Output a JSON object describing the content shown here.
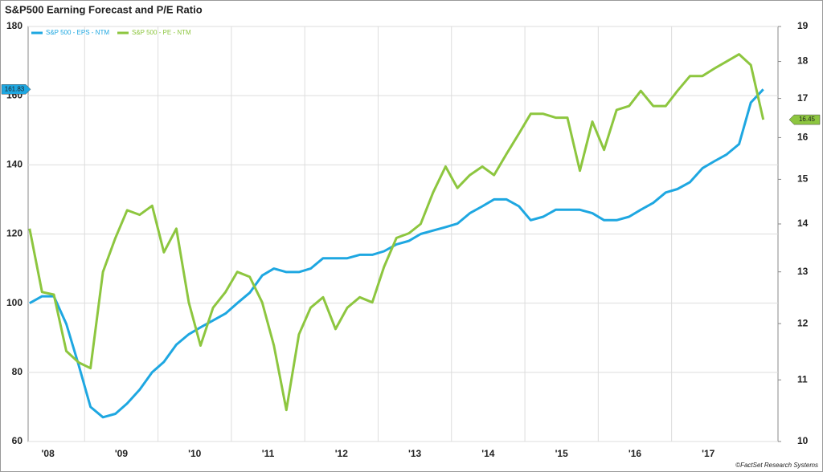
{
  "chart_data": {
    "type": "line",
    "title": "S&P500 Earning Forecast and P/E Ratio",
    "source": "©FactSet Research Systems",
    "x": [
      2008.25,
      2008.42,
      2008.58,
      2008.75,
      2008.92,
      2009.08,
      2009.25,
      2009.42,
      2009.58,
      2009.75,
      2009.92,
      2010.08,
      2010.25,
      2010.42,
      2010.58,
      2010.75,
      2010.92,
      2011.08,
      2011.25,
      2011.42,
      2011.58,
      2011.75,
      2011.92,
      2012.08,
      2012.25,
      2012.42,
      2012.58,
      2012.75,
      2012.92,
      2013.08,
      2013.25,
      2013.42,
      2013.58,
      2013.75,
      2013.92,
      2014.08,
      2014.25,
      2014.42,
      2014.58,
      2014.75,
      2014.92,
      2015.08,
      2015.25,
      2015.42,
      2015.58,
      2015.75,
      2015.92,
      2016.08,
      2016.25,
      2016.42,
      2016.58,
      2016.75,
      2016.92,
      2017.08,
      2017.25,
      2017.42,
      2017.58,
      2017.75,
      2017.92,
      2018.08,
      2018.25
    ],
    "series": [
      {
        "name": "S&P 500 - EPS - NTM",
        "color": "#1ea7e1",
        "axis": "y",
        "values": [
          100,
          102,
          102,
          94,
          82,
          70,
          67,
          68,
          71,
          75,
          80,
          83,
          88,
          91,
          93,
          95,
          97,
          100,
          103,
          108,
          110,
          109,
          109,
          110,
          113,
          113,
          113,
          114,
          114,
          115,
          117,
          118,
          120,
          121,
          122,
          123,
          126,
          128,
          130,
          130,
          128,
          124,
          125,
          127,
          127,
          127,
          126,
          124,
          124,
          125,
          127,
          129,
          132,
          133,
          135,
          139,
          141,
          143,
          146,
          158,
          161.83
        ],
        "value_labels": [
          null,
          null,
          null,
          null,
          null,
          null,
          null,
          null,
          null,
          null,
          null,
          null,
          null,
          null,
          null,
          null,
          null,
          null,
          null,
          null,
          null,
          null,
          null,
          null,
          null,
          null,
          null,
          null,
          null,
          null,
          null,
          null,
          null,
          null,
          null,
          null,
          null,
          null,
          null,
          null,
          null,
          null,
          null,
          null,
          null,
          null,
          null,
          null,
          null,
          null,
          null,
          null,
          null,
          null,
          null,
          null,
          null,
          null,
          null,
          null,
          "161.83"
        ]
      },
      {
        "name": "S&P 500 - PE - NTM",
        "color": "#8dc63f",
        "axis": "y2",
        "values": [
          13.9,
          12.6,
          12.55,
          11.5,
          11.3,
          11.2,
          13.0,
          13.7,
          14.3,
          14.2,
          14.4,
          13.4,
          13.9,
          12.4,
          11.6,
          12.3,
          12.6,
          13.0,
          12.9,
          12.4,
          11.6,
          10.5,
          11.8,
          12.3,
          12.5,
          11.9,
          12.3,
          12.5,
          12.4,
          13.1,
          13.7,
          13.8,
          14.0,
          14.7,
          15.3,
          14.8,
          15.1,
          15.3,
          15.1,
          15.6,
          16.1,
          16.6,
          16.6,
          16.5,
          16.5,
          15.2,
          16.4,
          15.7,
          16.7,
          16.8,
          17.2,
          16.8,
          16.8,
          17.2,
          17.6,
          17.6,
          17.8,
          18.0,
          18.2,
          17.9,
          16.45
        ],
        "value_labels": [
          null,
          null,
          null,
          null,
          null,
          null,
          null,
          null,
          null,
          null,
          null,
          null,
          null,
          null,
          null,
          null,
          null,
          null,
          null,
          null,
          null,
          null,
          null,
          null,
          null,
          null,
          null,
          null,
          null,
          null,
          null,
          null,
          null,
          null,
          null,
          null,
          null,
          null,
          null,
          null,
          null,
          null,
          null,
          null,
          null,
          null,
          null,
          null,
          null,
          null,
          null,
          null,
          null,
          null,
          null,
          null,
          null,
          null,
          null,
          null,
          "16.45"
        ]
      }
    ],
    "xlim": [
      2008.23,
      2018.45
    ],
    "xticks": [
      {
        "value": 2008,
        "label": "'08"
      },
      {
        "value": 2009,
        "label": "'09"
      },
      {
        "value": 2010,
        "label": "'10"
      },
      {
        "value": 2011,
        "label": "'11"
      },
      {
        "value": 2012,
        "label": "'12"
      },
      {
        "value": 2013,
        "label": "'13"
      },
      {
        "value": 2014,
        "label": "'14"
      },
      {
        "value": 2015,
        "label": "'15"
      },
      {
        "value": 2016,
        "label": "'16"
      },
      {
        "value": 2017,
        "label": "'17"
      }
    ],
    "ylim": [
      60,
      180
    ],
    "yticks": [
      60,
      80,
      100,
      120,
      140,
      160,
      180
    ],
    "y2lim": [
      10,
      19
    ],
    "y2ticks": [
      10,
      11,
      12,
      13,
      14,
      15,
      16,
      17,
      18,
      19
    ],
    "y2log": true,
    "grid": true,
    "legend": "top-left"
  }
}
